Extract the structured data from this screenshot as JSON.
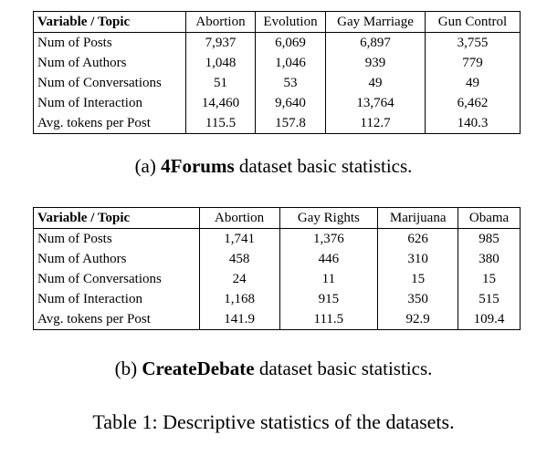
{
  "table_a": {
    "header": [
      "Variable / Topic",
      "Abortion",
      "Evolution",
      "Gay Marriage",
      "Gun Control"
    ],
    "rows": [
      [
        "Num of Posts",
        "7,937",
        "6,069",
        "6,897",
        "3,755"
      ],
      [
        "Num of Authors",
        "1,048",
        "1,046",
        "939",
        "779"
      ],
      [
        "Num of Conversations",
        "51",
        "53",
        "49",
        "49"
      ],
      [
        "Num of Interaction",
        "14,460",
        "9,640",
        "13,764",
        "6,462"
      ],
      [
        "Avg. tokens per Post",
        "115.5",
        "157.8",
        "112.7",
        "140.3"
      ]
    ],
    "caption_prefix": "(a) ",
    "caption_bold": "4Forums",
    "caption_suffix": " dataset basic statistics."
  },
  "table_b": {
    "header": [
      "Variable / Topic",
      "Abortion",
      "Gay Rights",
      "Marijuana",
      "Obama"
    ],
    "rows": [
      [
        "Num of Posts",
        "1,741",
        "1,376",
        "626",
        "985"
      ],
      [
        "Num of Authors",
        "458",
        "446",
        "310",
        "380"
      ],
      [
        "Num of Conversations",
        "24",
        "11",
        "15",
        "15"
      ],
      [
        "Num of Interaction",
        "1,168",
        "915",
        "350",
        "515"
      ],
      [
        "Avg. tokens per Post",
        "141.9",
        "111.5",
        "92.9",
        "109.4"
      ]
    ],
    "caption_prefix": "(b) ",
    "caption_bold": "CreateDebate",
    "caption_suffix": " dataset basic statistics."
  },
  "main_caption": "Table 1: Descriptive statistics of the datasets."
}
